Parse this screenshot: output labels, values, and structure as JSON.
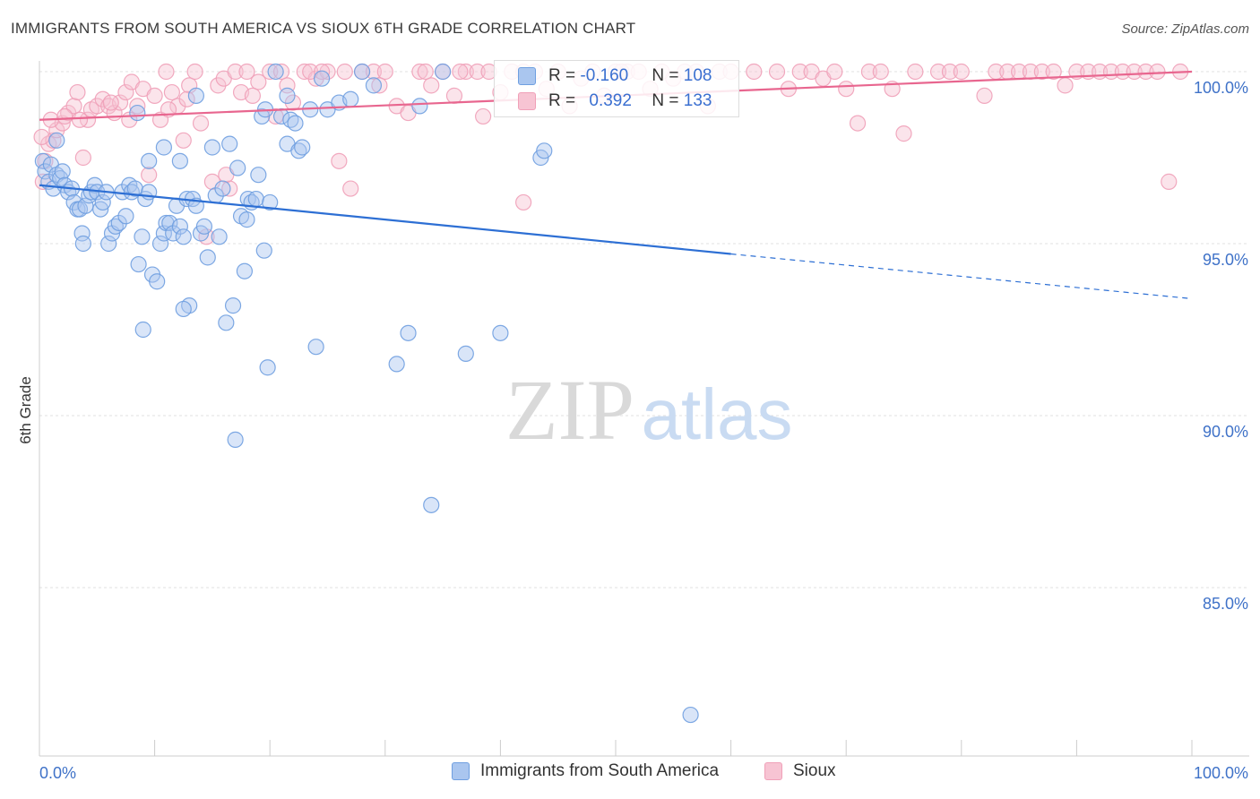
{
  "title": "IMMIGRANTS FROM SOUTH AMERICA VS SIOUX 6TH GRADE CORRELATION CHART",
  "source": "Source: ZipAtlas.com",
  "watermark": {
    "zip": "ZIP",
    "atlas": "atlas"
  },
  "chart_data": {
    "type": "scatter",
    "ylabel": "6th Grade",
    "xlim": [
      0,
      100
    ],
    "ylim": [
      80.5,
      100.8
    ],
    "x_tick_labels": [
      "0.0%",
      "100.0%"
    ],
    "y_ticks": [
      {
        "value": 100,
        "label": "100.0%"
      },
      {
        "value": 95,
        "label": "95.0%"
      },
      {
        "value": 90,
        "label": "90.0%"
      },
      {
        "value": 85,
        "label": "85.0%"
      }
    ],
    "grid": "horizontal-dashed",
    "legend_placement": "bottom-center",
    "series": [
      {
        "name": "Immigrants from South America",
        "color": "#6f9fe0",
        "fill": "#aac6ef",
        "trend_color": "#2d6fd4",
        "R": "-0.160",
        "N": "108",
        "trend": {
          "x0": 0,
          "y0": 96.7,
          "x1": 60,
          "y1": 94.7,
          "dash_to_x": 100,
          "dash_to_y": 93.4
        },
        "points": [
          [
            0.3,
            97.4
          ],
          [
            0.5,
            97.1
          ],
          [
            0.8,
            96.8
          ],
          [
            1.0,
            97.3
          ],
          [
            1.2,
            96.6
          ],
          [
            1.5,
            97.0
          ],
          [
            1.8,
            96.9
          ],
          [
            2.0,
            97.1
          ],
          [
            2.2,
            96.7
          ],
          [
            2.5,
            96.5
          ],
          [
            2.8,
            96.6
          ],
          [
            3.0,
            96.2
          ],
          [
            3.3,
            96.0
          ],
          [
            3.5,
            96.0
          ],
          [
            3.7,
            95.3
          ],
          [
            3.8,
            95.0
          ],
          [
            4.0,
            96.1
          ],
          [
            4.3,
            96.4
          ],
          [
            4.5,
            96.5
          ],
          [
            4.8,
            96.7
          ],
          [
            5.0,
            96.5
          ],
          [
            5.3,
            96.0
          ],
          [
            5.5,
            96.2
          ],
          [
            5.8,
            96.5
          ],
          [
            6.0,
            95.0
          ],
          [
            6.3,
            95.3
          ],
          [
            6.6,
            95.5
          ],
          [
            6.9,
            95.6
          ],
          [
            7.2,
            96.5
          ],
          [
            7.5,
            95.8
          ],
          [
            7.8,
            96.7
          ],
          [
            8.0,
            96.5
          ],
          [
            8.3,
            96.6
          ],
          [
            8.6,
            94.4
          ],
          [
            8.9,
            95.2
          ],
          [
            9.2,
            96.3
          ],
          [
            9.5,
            96.5
          ],
          [
            9.8,
            94.1
          ],
          [
            10.2,
            93.9
          ],
          [
            10.5,
            95.0
          ],
          [
            10.8,
            95.3
          ],
          [
            11.0,
            95.6
          ],
          [
            11.3,
            95.6
          ],
          [
            11.6,
            95.3
          ],
          [
            11.9,
            96.1
          ],
          [
            12.2,
            95.5
          ],
          [
            12.5,
            95.2
          ],
          [
            12.8,
            96.3
          ],
          [
            13.0,
            93.2
          ],
          [
            13.3,
            96.3
          ],
          [
            13.6,
            96.1
          ],
          [
            14.0,
            95.3
          ],
          [
            14.3,
            95.5
          ],
          [
            14.6,
            94.6
          ],
          [
            15.0,
            97.8
          ],
          [
            15.3,
            96.4
          ],
          [
            15.6,
            95.2
          ],
          [
            15.9,
            96.6
          ],
          [
            16.2,
            92.7
          ],
          [
            16.5,
            97.9
          ],
          [
            16.8,
            93.2
          ],
          [
            17.2,
            97.2
          ],
          [
            17.5,
            95.8
          ],
          [
            17.8,
            94.2
          ],
          [
            18.1,
            96.3
          ],
          [
            18.4,
            96.2
          ],
          [
            18.8,
            96.3
          ],
          [
            19.0,
            97.0
          ],
          [
            19.3,
            98.7
          ],
          [
            19.6,
            98.9
          ],
          [
            20.0,
            96.2
          ],
          [
            20.5,
            100.0
          ],
          [
            21.0,
            98.7
          ],
          [
            21.5,
            97.9
          ],
          [
            21.8,
            98.6
          ],
          [
            22.2,
            98.5
          ],
          [
            22.5,
            97.7
          ],
          [
            22.8,
            97.8
          ],
          [
            23.5,
            98.9
          ],
          [
            24.0,
            92.0
          ],
          [
            24.5,
            99.8
          ],
          [
            25.0,
            98.9
          ],
          [
            26.0,
            99.1
          ],
          [
            27.0,
            99.2
          ],
          [
            28.0,
            100.0
          ],
          [
            29.0,
            99.6
          ],
          [
            31.0,
            91.5
          ],
          [
            32.0,
            92.4
          ],
          [
            33.0,
            99.0
          ],
          [
            35.0,
            100.0
          ],
          [
            37.0,
            91.8
          ],
          [
            43.5,
            97.5
          ],
          [
            43.8,
            97.7
          ],
          [
            1.5,
            98.0
          ],
          [
            8.5,
            98.8
          ],
          [
            9.5,
            97.4
          ],
          [
            10.8,
            97.8
          ],
          [
            12.2,
            97.4
          ],
          [
            13.6,
            99.3
          ],
          [
            18.0,
            95.7
          ],
          [
            19.5,
            94.8
          ],
          [
            21.5,
            99.3
          ],
          [
            17.0,
            89.3
          ],
          [
            34.0,
            87.4
          ],
          [
            9.0,
            92.5
          ],
          [
            12.5,
            93.1
          ],
          [
            19.8,
            91.4
          ],
          [
            40.0,
            92.4
          ],
          [
            56.5,
            81.3
          ]
        ]
      },
      {
        "name": "Sioux",
        "color": "#f0a0b8",
        "fill": "#f7c4d3",
        "trend_color": "#e8668f",
        "R": "0.392",
        "N": "133",
        "trend": {
          "x0": 0,
          "y0": 98.6,
          "x1": 100,
          "y1": 100.0
        },
        "points": [
          [
            0.3,
            96.8
          ],
          [
            0.5,
            97.4
          ],
          [
            0.8,
            97.9
          ],
          [
            1.2,
            98.0
          ],
          [
            1.5,
            98.3
          ],
          [
            2.0,
            98.5
          ],
          [
            2.5,
            98.8
          ],
          [
            3.0,
            99.0
          ],
          [
            3.3,
            99.4
          ],
          [
            3.8,
            97.5
          ],
          [
            4.2,
            98.6
          ],
          [
            4.5,
            98.9
          ],
          [
            5.0,
            99.0
          ],
          [
            5.5,
            99.2
          ],
          [
            6.0,
            99.0
          ],
          [
            6.5,
            98.8
          ],
          [
            7.0,
            99.1
          ],
          [
            7.5,
            99.4
          ],
          [
            8.0,
            99.7
          ],
          [
            8.5,
            99.0
          ],
          [
            9.0,
            99.5
          ],
          [
            9.5,
            97.0
          ],
          [
            10.0,
            99.3
          ],
          [
            10.5,
            98.6
          ],
          [
            11.0,
            100.0
          ],
          [
            11.5,
            99.4
          ],
          [
            12.0,
            99.0
          ],
          [
            12.5,
            98.0
          ],
          [
            13.0,
            99.6
          ],
          [
            13.5,
            100.0
          ],
          [
            14.0,
            98.5
          ],
          [
            14.5,
            95.2
          ],
          [
            15.0,
            96.8
          ],
          [
            15.5,
            99.6
          ],
          [
            16.0,
            99.8
          ],
          [
            16.5,
            96.6
          ],
          [
            17.0,
            100.0
          ],
          [
            17.5,
            99.4
          ],
          [
            18.0,
            100.0
          ],
          [
            19.0,
            99.7
          ],
          [
            20.0,
            100.0
          ],
          [
            21.0,
            100.0
          ],
          [
            22.0,
            99.1
          ],
          [
            23.0,
            100.0
          ],
          [
            24.0,
            99.8
          ],
          [
            25.0,
            100.0
          ],
          [
            26.0,
            97.4
          ],
          [
            27.0,
            96.6
          ],
          [
            28.0,
            100.0
          ],
          [
            29.0,
            100.0
          ],
          [
            30.0,
            100.0
          ],
          [
            31.0,
            99.0
          ],
          [
            32.0,
            98.8
          ],
          [
            33.0,
            100.0
          ],
          [
            34.0,
            99.6
          ],
          [
            35.0,
            100.0
          ],
          [
            36.0,
            99.3
          ],
          [
            37.0,
            100.0
          ],
          [
            38.0,
            100.0
          ],
          [
            39.0,
            100.0
          ],
          [
            40.0,
            99.4
          ],
          [
            41.0,
            100.0
          ],
          [
            42.0,
            100.0
          ],
          [
            43.0,
            100.0
          ],
          [
            44.0,
            99.5
          ],
          [
            45.0,
            100.0
          ],
          [
            46.0,
            99.0
          ],
          [
            47.0,
            99.8
          ],
          [
            48.0,
            100.0
          ],
          [
            49.0,
            99.3
          ],
          [
            50.0,
            100.0
          ],
          [
            51.0,
            100.0
          ],
          [
            52.0,
            100.0
          ],
          [
            53.0,
            99.5
          ],
          [
            54.0,
            100.0
          ],
          [
            55.0,
            99.8
          ],
          [
            56.0,
            100.0
          ],
          [
            57.0,
            100.0
          ],
          [
            58.0,
            99.0
          ],
          [
            59.0,
            100.0
          ],
          [
            60.0,
            100.0
          ],
          [
            62.0,
            100.0
          ],
          [
            64.0,
            100.0
          ],
          [
            65.0,
            99.5
          ],
          [
            66.0,
            100.0
          ],
          [
            67.0,
            100.0
          ],
          [
            68.0,
            99.8
          ],
          [
            69.0,
            100.0
          ],
          [
            70.0,
            99.5
          ],
          [
            71.0,
            98.5
          ],
          [
            72.0,
            100.0
          ],
          [
            73.0,
            100.0
          ],
          [
            74.0,
            99.5
          ],
          [
            75.0,
            98.2
          ],
          [
            76.0,
            100.0
          ],
          [
            78.0,
            100.0
          ],
          [
            79.0,
            100.0
          ],
          [
            80.0,
            100.0
          ],
          [
            82.0,
            99.3
          ],
          [
            83.0,
            100.0
          ],
          [
            84.0,
            100.0
          ],
          [
            85.0,
            100.0
          ],
          [
            86.0,
            100.0
          ],
          [
            87.0,
            100.0
          ],
          [
            88.0,
            100.0
          ],
          [
            89.0,
            99.6
          ],
          [
            90.0,
            100.0
          ],
          [
            91.0,
            100.0
          ],
          [
            92.0,
            100.0
          ],
          [
            93.0,
            100.0
          ],
          [
            94.0,
            100.0
          ],
          [
            95.0,
            100.0
          ],
          [
            96.0,
            100.0
          ],
          [
            97.0,
            100.0
          ],
          [
            98.0,
            96.8
          ],
          [
            99.0,
            100.0
          ],
          [
            0.2,
            98.1
          ],
          [
            1.0,
            98.6
          ],
          [
            2.2,
            98.7
          ],
          [
            3.5,
            98.6
          ],
          [
            6.2,
            99.1
          ],
          [
            7.8,
            98.6
          ],
          [
            11.2,
            98.9
          ],
          [
            12.8,
            99.2
          ],
          [
            16.2,
            97.0
          ],
          [
            18.5,
            99.3
          ],
          [
            20.5,
            98.7
          ],
          [
            21.5,
            99.6
          ],
          [
            23.5,
            100.0
          ],
          [
            24.5,
            100.0
          ],
          [
            26.5,
            100.0
          ],
          [
            29.5,
            99.6
          ],
          [
            33.5,
            100.0
          ],
          [
            36.5,
            100.0
          ],
          [
            38.5,
            98.7
          ],
          [
            42.0,
            96.2
          ],
          [
            50.5,
            100.0
          ]
        ]
      }
    ]
  }
}
